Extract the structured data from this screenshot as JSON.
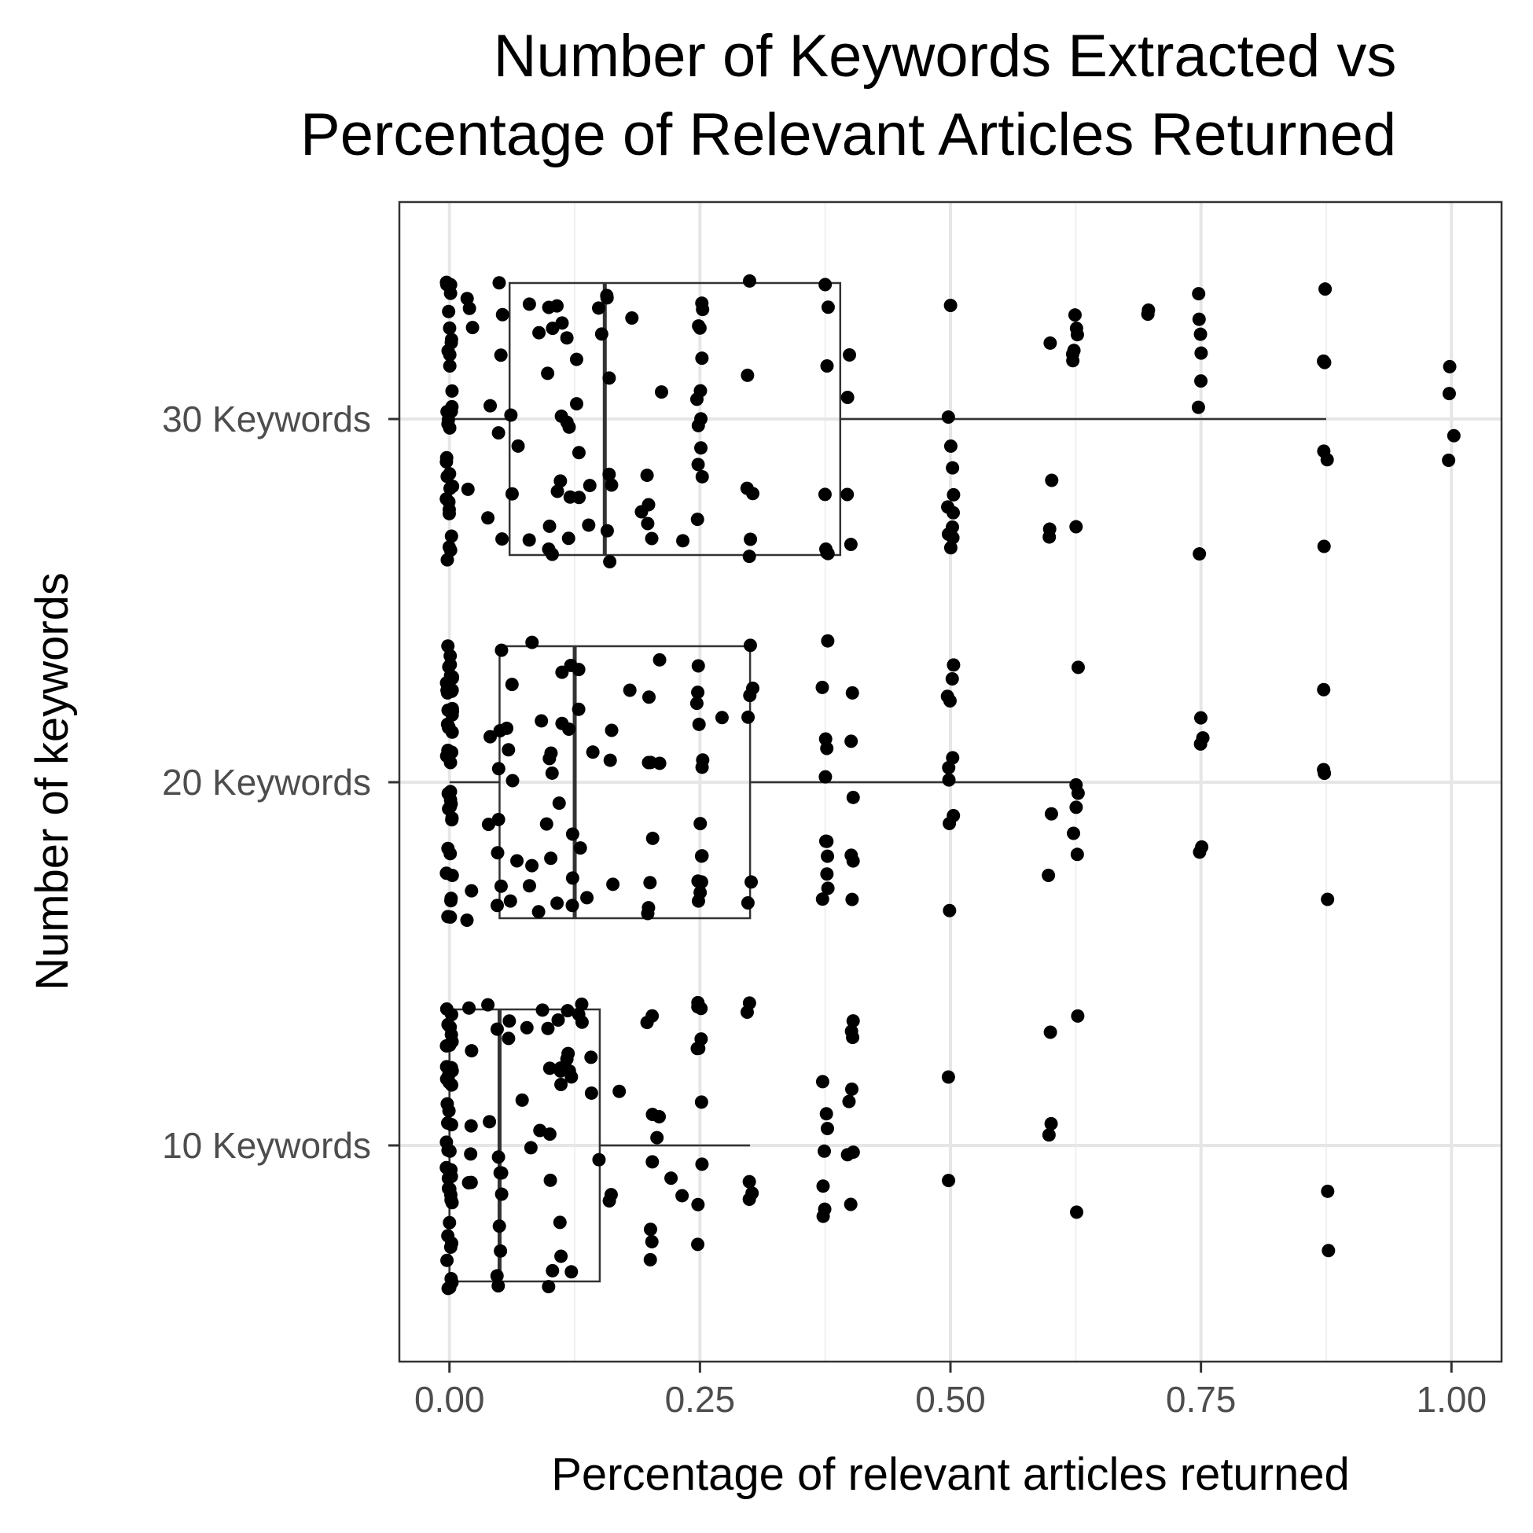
{
  "chart_data": {
    "type": "boxplot",
    "orientation": "horizontal",
    "title_lines": [
      "Number of Keywords Extracted vs",
      "Percentage of Relevant Articles Returned"
    ],
    "xlabel": "Percentage of relevant articles returned",
    "ylabel": "Number of keywords",
    "xlim": [
      -0.05,
      1.05
    ],
    "x_ticks": [
      0,
      0.25,
      0.5,
      0.75,
      1
    ],
    "x_tick_labels": [
      "0.00",
      "0.25",
      "0.50",
      "0.75",
      "1.00"
    ],
    "categories": [
      "10 Keywords",
      "20 Keywords",
      "30 Keywords"
    ],
    "grid": true,
    "series": [
      {
        "category": "10 Keywords",
        "box": {
          "min": 0,
          "q1": 0,
          "median": 0.05,
          "q3": 0.15,
          "max": 0.3
        },
        "points": [
          0,
          0,
          0,
          0,
          0,
          0,
          0,
          0,
          0,
          0,
          0,
          0,
          0,
          0,
          0,
          0,
          0,
          0,
          0,
          0,
          0,
          0,
          0,
          0,
          0,
          0,
          0,
          0,
          0,
          0,
          0,
          0,
          0,
          0,
          0,
          0,
          0,
          0,
          0,
          0,
          0.02,
          0.02,
          0.02,
          0.02,
          0.02,
          0.02,
          0.04,
          0.04,
          0.05,
          0.05,
          0.05,
          0.05,
          0.05,
          0.05,
          0.05,
          0.05,
          0.05,
          0.06,
          0.06,
          0.07,
          0.08,
          0.08,
          0.09,
          0.09,
          0.1,
          0.1,
          0.1,
          0.1,
          0.1,
          0.1,
          0.11,
          0.11,
          0.11,
          0.11,
          0.11,
          0.11,
          0.12,
          0.12,
          0.12,
          0.12,
          0.12,
          0.12,
          0.13,
          0.13,
          0.13,
          0.14,
          0.14,
          0.15,
          0.16,
          0.16,
          0.17,
          0.2,
          0.2,
          0.2,
          0.2,
          0.2,
          0.2,
          0.2,
          0.21,
          0.21,
          0.22,
          0.23,
          0.25,
          0.25,
          0.25,
          0.25,
          0.25,
          0.25,
          0.25,
          0.25,
          0.25,
          0.25,
          0.3,
          0.3,
          0.3,
          0.3,
          0.3,
          0.375,
          0.375,
          0.375,
          0.375,
          0.375,
          0.375,
          0.375,
          0.4,
          0.4,
          0.4,
          0.4,
          0.4,
          0.4,
          0.4,
          0.4,
          0.5,
          0.5,
          0.6,
          0.6,
          0.6,
          0.625,
          0.625,
          0.875,
          0.875
        ]
      },
      {
        "category": "20 Keywords",
        "box": {
          "min": 0,
          "q1": 0.05,
          "median": 0.125,
          "q3": 0.3,
          "max": 0.625
        },
        "points": [
          0,
          0,
          0,
          0,
          0,
          0,
          0,
          0,
          0,
          0,
          0,
          0,
          0,
          0,
          0,
          0,
          0,
          0,
          0,
          0,
          0,
          0,
          0,
          0,
          0,
          0,
          0,
          0,
          0,
          0,
          0,
          0,
          0,
          0,
          0,
          0,
          0,
          0,
          0,
          0,
          0.02,
          0.02,
          0.04,
          0.04,
          0.05,
          0.05,
          0.05,
          0.05,
          0.05,
          0.05,
          0.05,
          0.06,
          0.06,
          0.06,
          0.06,
          0.06,
          0.07,
          0.08,
          0.08,
          0.08,
          0.09,
          0.09,
          0.1,
          0.1,
          0.1,
          0.1,
          0.1,
          0.11,
          0.11,
          0.11,
          0.11,
          0.12,
          0.12,
          0.12,
          0.12,
          0.12,
          0.13,
          0.13,
          0.13,
          0.14,
          0.14,
          0.16,
          0.16,
          0.16,
          0.18,
          0.2,
          0.2,
          0.2,
          0.2,
          0.2,
          0.2,
          0.2,
          0.21,
          0.21,
          0.25,
          0.25,
          0.25,
          0.25,
          0.25,
          0.25,
          0.25,
          0.25,
          0.25,
          0.25,
          0.25,
          0.25,
          0.25,
          0.27,
          0.3,
          0.3,
          0.3,
          0.3,
          0.3,
          0.3,
          0.375,
          0.375,
          0.375,
          0.375,
          0.375,
          0.375,
          0.375,
          0.375,
          0.375,
          0.375,
          0.375,
          0.4,
          0.4,
          0.4,
          0.4,
          0.4,
          0.4,
          0.5,
          0.5,
          0.5,
          0.5,
          0.5,
          0.5,
          0.5,
          0.5,
          0.5,
          0.5,
          0.6,
          0.6,
          0.625,
          0.625,
          0.625,
          0.625,
          0.625,
          0.625,
          0.75,
          0.75,
          0.75,
          0.75,
          0.75,
          0.875,
          0.875,
          0.875,
          0.875
        ]
      },
      {
        "category": "30 Keywords",
        "box": {
          "min": 0,
          "q1": 0.06,
          "median": 0.155,
          "q3": 0.39,
          "max": 0.875
        },
        "points": [
          0,
          0,
          0,
          0,
          0,
          0,
          0,
          0,
          0,
          0,
          0,
          0,
          0,
          0,
          0,
          0,
          0,
          0,
          0,
          0,
          0,
          0,
          0,
          0,
          0,
          0,
          0,
          0,
          0,
          0,
          0,
          0,
          0.02,
          0.02,
          0.02,
          0.02,
          0.04,
          0.04,
          0.05,
          0.05,
          0.05,
          0.05,
          0.05,
          0.06,
          0.06,
          0.07,
          0.08,
          0.08,
          0.09,
          0.1,
          0.1,
          0.1,
          0.1,
          0.1,
          0.1,
          0.11,
          0.11,
          0.11,
          0.11,
          0.11,
          0.12,
          0.12,
          0.12,
          0.12,
          0.12,
          0.13,
          0.13,
          0.13,
          0.13,
          0.14,
          0.14,
          0.15,
          0.15,
          0.16,
          0.16,
          0.16,
          0.16,
          0.16,
          0.16,
          0.16,
          0.18,
          0.19,
          0.2,
          0.2,
          0.2,
          0.2,
          0.21,
          0.23,
          0.25,
          0.25,
          0.25,
          0.25,
          0.25,
          0.25,
          0.25,
          0.25,
          0.25,
          0.25,
          0.25,
          0.25,
          0.25,
          0.3,
          0.3,
          0.3,
          0.3,
          0.3,
          0.3,
          0.375,
          0.375,
          0.375,
          0.375,
          0.375,
          0.375,
          0.375,
          0.4,
          0.4,
          0.4,
          0.4,
          0.5,
          0.5,
          0.5,
          0.5,
          0.5,
          0.5,
          0.5,
          0.5,
          0.5,
          0.5,
          0.5,
          0.6,
          0.6,
          0.6,
          0.6,
          0.625,
          0.625,
          0.625,
          0.625,
          0.625,
          0.625,
          0.625,
          0.7,
          0.7,
          0.75,
          0.75,
          0.75,
          0.75,
          0.75,
          0.75,
          0.75,
          0.875,
          0.875,
          0.875,
          0.875,
          0.875,
          0.875,
          1,
          1,
          1,
          1
        ]
      }
    ]
  }
}
